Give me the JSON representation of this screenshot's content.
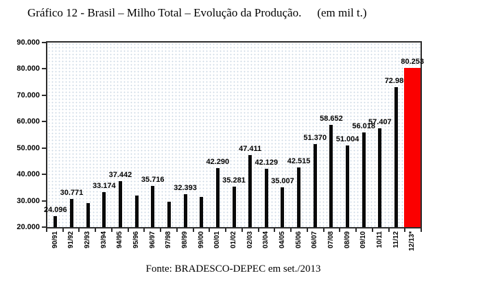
{
  "title": {
    "text": "Gráfico 12 - Brasil – Milho Total – Evolução da Produção.",
    "unit": "(em mil t.)"
  },
  "footer": {
    "text": "Fonte: BRADESCO-DEPEC em set./2013"
  },
  "colors": {
    "bar": "#0a0a0a",
    "highlight_bar": "#fb0000",
    "frame": "#2b2b2b"
  },
  "chart_data": {
    "type": "bar",
    "title": "Gráfico 12 - Brasil – Milho Total – Evolução da Produção. (em mil t.)",
    "xlabel": "",
    "ylabel": "",
    "categories": [
      "90/91",
      "91/92",
      "92/93",
      "93/94",
      "94/95",
      "95/96",
      "96/97",
      "97/98",
      "98/99",
      "99/00",
      "00/01",
      "01/02",
      "02/03",
      "03/04",
      "04/05",
      "05/06",
      "06/07",
      "07/08",
      "08/09",
      "09/10",
      "10/11",
      "11/12",
      "12/13*"
    ],
    "values": [
      24096,
      30771,
      29100,
      33174,
      37442,
      32000,
      35716,
      29700,
      32393,
      31400,
      42290,
      35281,
      47411,
      42129,
      35007,
      42515,
      51370,
      58652,
      51004,
      56018,
      57407,
      72980,
      80253
    ],
    "labels": [
      "24.096",
      "30.771",
      "",
      "33.174",
      "37.442",
      "",
      "35.716",
      "",
      "32.393",
      "",
      "42.290",
      "35.281",
      "47.411",
      "42.129",
      "35.007",
      "42.515",
      "51.370",
      "58.652",
      "51.004",
      "56.018",
      "57.407",
      "72.980",
      "80.253"
    ],
    "highlight_index": 22,
    "y_ticks": [
      "90.000",
      "80.000",
      "70.000",
      "60.000",
      "50.000",
      "40.000",
      "30.000",
      "20.000"
    ],
    "ylim": [
      20000,
      90000
    ],
    "grid": false,
    "legend": "none",
    "x_labels_rotated_degrees": 90
  }
}
